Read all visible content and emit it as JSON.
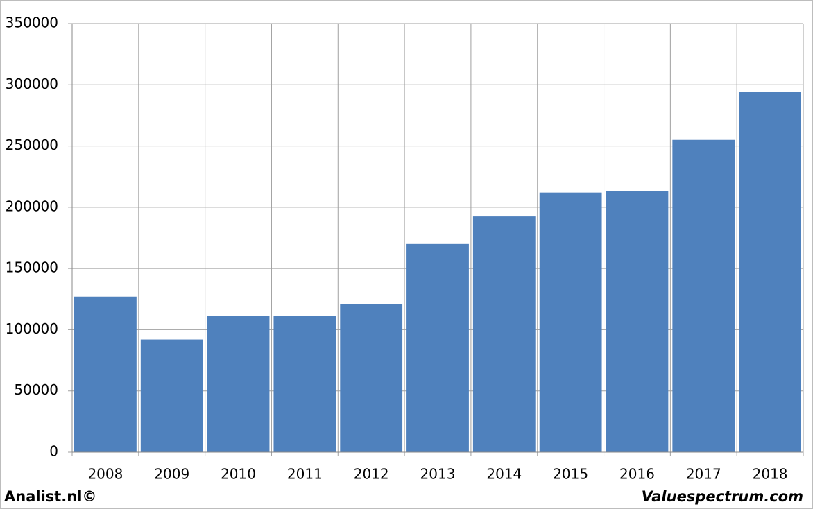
{
  "chart_data": {
    "type": "bar",
    "categories": [
      "2008",
      "2009",
      "2010",
      "2011",
      "2012",
      "2013",
      "2014",
      "2015",
      "2016",
      "2017",
      "2018"
    ],
    "values": [
      127000,
      92000,
      111500,
      111500,
      121000,
      170000,
      192500,
      212000,
      213000,
      255000,
      294000
    ],
    "color": "#4f81bd",
    "ylim": [
      0,
      350000
    ],
    "yticks": [
      0,
      50000,
      100000,
      150000,
      200000,
      250000,
      300000,
      350000
    ],
    "grid": true,
    "footer_left": "Analist.nl©",
    "footer_right": "Valuespectrum.com"
  }
}
